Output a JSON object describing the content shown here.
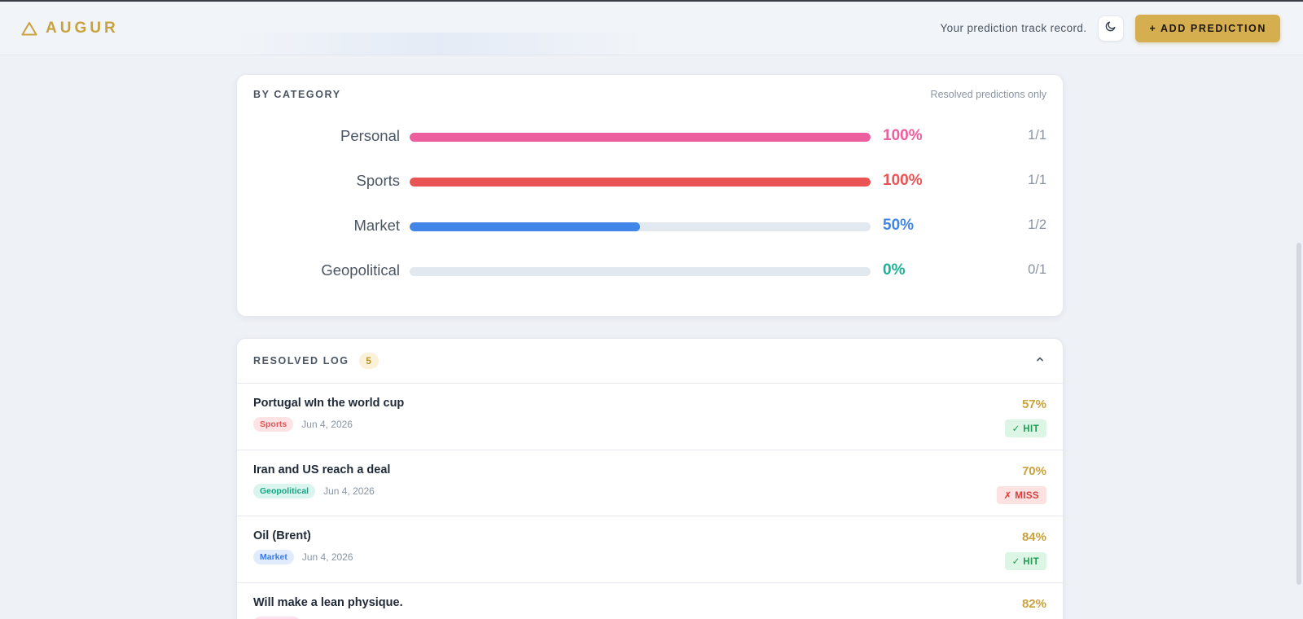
{
  "header": {
    "brand": "AUGUR",
    "tagline": "Your prediction track record.",
    "add_button": "+ ADD PREDICTION",
    "icons": {
      "logo": "triangle-icon",
      "theme": "moon-icon"
    }
  },
  "by_category": {
    "title": "BY CATEGORY",
    "note": "Resolved predictions only",
    "rows": [
      {
        "label": "Personal",
        "pct": "100%",
        "fraction": "1/1",
        "rate": 1.0,
        "color": "#ec5e9e"
      },
      {
        "label": "Sports",
        "pct": "100%",
        "fraction": "1/1",
        "rate": 1.0,
        "color": "#ea5455"
      },
      {
        "label": "Market",
        "pct": "50%",
        "fraction": "1/2",
        "rate": 0.5,
        "color": "#4285e8"
      },
      {
        "label": "Geopolitical",
        "pct": "0%",
        "fraction": "0/1",
        "rate": 0.0,
        "color": "#1ab394"
      }
    ]
  },
  "resolved_log": {
    "title": "RESOLVED LOG",
    "count": "5",
    "toggle_icon": "chevron-up-icon",
    "items": [
      {
        "title": "Portugal wIn the world cup",
        "tag": "Sports",
        "date": "Jun 4, 2026",
        "pct": "57%",
        "result": "✓ HIT",
        "outcome": "hit",
        "tag_bg": "#fde3e3",
        "tag_fg": "#e0565b"
      },
      {
        "title": "Iran and US reach a deal",
        "tag": "Geopolitical",
        "date": "Jun 4, 2026",
        "pct": "70%",
        "result": "✗ MISS",
        "outcome": "miss",
        "tag_bg": "#d9f5ee",
        "tag_fg": "#14a585"
      },
      {
        "title": "Oil (Brent)",
        "tag": "Market",
        "date": "Jun 4, 2026",
        "pct": "84%",
        "result": "✓ HIT",
        "outcome": "hit",
        "tag_bg": "#e0ebfd",
        "tag_fg": "#3b7be0"
      },
      {
        "title": "Will make a lean physique.",
        "tag": "",
        "date": "",
        "pct": "82%",
        "result": "",
        "outcome": "hit",
        "tag_bg": "#fde3ef",
        "tag_fg": "#e0568f"
      }
    ]
  }
}
